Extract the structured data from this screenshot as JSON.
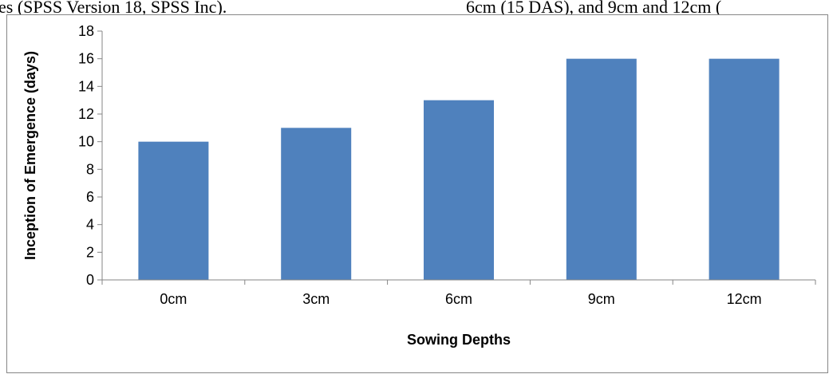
{
  "page_text": {
    "left": "es (SPSS Version 18, SPSS Inc).",
    "right": "6cm (15 DAS), and 9cm and 12cm ("
  },
  "chart_data": {
    "type": "bar",
    "categories": [
      "0cm",
      "3cm",
      "6cm",
      "9cm",
      "12cm"
    ],
    "values": [
      10,
      11,
      13,
      16,
      16
    ],
    "title": "",
    "xlabel": "Sowing Depths",
    "ylabel": "Inception of Emergence (days)",
    "ylim": [
      0,
      18
    ],
    "yticks": [
      0,
      2,
      4,
      6,
      8,
      10,
      12,
      14,
      16,
      18
    ],
    "grid": false,
    "legend": "none",
    "bar_color": "#4F81BD"
  }
}
